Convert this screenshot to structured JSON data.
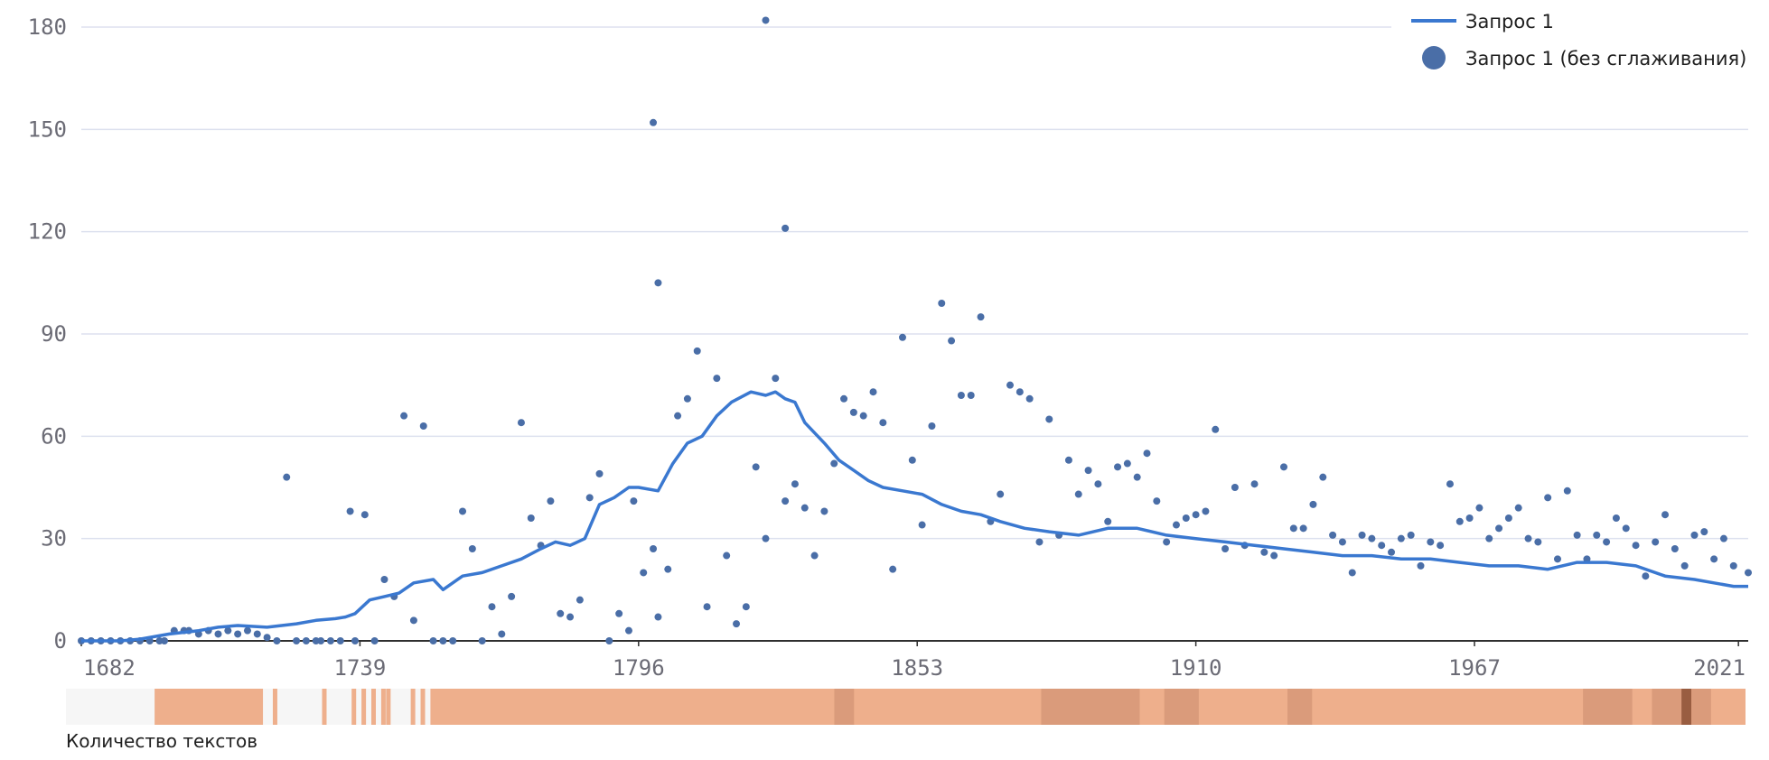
{
  "chart_data": {
    "type": "line",
    "title": "",
    "xlabel": "",
    "ylabel": "",
    "xlim": [
      1682,
      2023
    ],
    "ylim": [
      0,
      180
    ],
    "x_ticks": [
      "1682",
      "1739",
      "1796",
      "1853",
      "1910",
      "1967",
      "2021"
    ],
    "y_ticks": [
      "0",
      "30",
      "60",
      "90",
      "120",
      "150",
      "180"
    ],
    "grid": true,
    "legend_position": "top-right",
    "colors": {
      "smoothed": "#3a78d0",
      "raw": "#4a6ea7",
      "grid": "#dde1ef"
    },
    "series": [
      {
        "name": "Запрос 1",
        "style": "line",
        "x": [
          1682,
          1690,
          1694,
          1700,
          1706,
          1710,
          1714,
          1720,
          1726,
          1730,
          1734,
          1736,
          1738,
          1741,
          1744,
          1747,
          1750,
          1754,
          1756,
          1760,
          1764,
          1768,
          1772,
          1776,
          1779,
          1782,
          1785,
          1788,
          1791,
          1794,
          1796,
          1800,
          1803,
          1806,
          1809,
          1812,
          1815,
          1819,
          1822,
          1824,
          1826,
          1828,
          1830,
          1832,
          1834,
          1837,
          1840,
          1843,
          1846,
          1850,
          1854,
          1858,
          1862,
          1866,
          1870,
          1875,
          1880,
          1886,
          1892,
          1898,
          1904,
          1910,
          1916,
          1922,
          1928,
          1934,
          1940,
          1946,
          1952,
          1958,
          1964,
          1970,
          1976,
          1982,
          1988,
          1994,
          2000,
          2006,
          2012,
          2016,
          2020,
          2023
        ],
        "values": [
          0,
          0,
          0.5,
          2,
          3,
          4,
          4.5,
          4,
          5,
          6,
          6.5,
          7,
          8,
          12,
          13,
          14,
          17,
          18,
          15,
          19,
          20,
          22,
          24,
          27,
          29,
          28,
          30,
          40,
          42,
          45,
          45,
          44,
          52,
          58,
          60,
          66,
          70,
          73,
          72,
          73,
          71,
          70,
          64,
          61,
          58,
          53,
          50,
          47,
          45,
          44,
          43,
          40,
          38,
          37,
          35,
          33,
          32,
          31,
          33,
          33,
          31,
          30,
          29,
          28,
          27,
          26,
          25,
          25,
          24,
          24,
          23,
          22,
          22,
          21,
          23,
          23,
          22,
          19,
          18,
          17,
          16,
          16
        ]
      },
      {
        "name": "Запрос 1 (без сглаживания)",
        "style": "scatter",
        "x": [
          1682,
          1684,
          1686,
          1688,
          1690,
          1692,
          1694,
          1696,
          1698,
          1699,
          1701,
          1703,
          1704,
          1706,
          1708,
          1710,
          1712,
          1714,
          1716,
          1718,
          1720,
          1722,
          1724,
          1726,
          1728,
          1730,
          1731,
          1733,
          1735,
          1737,
          1738,
          1740,
          1742,
          1744,
          1746,
          1748,
          1750,
          1752,
          1754,
          1756,
          1758,
          1760,
          1762,
          1764,
          1766,
          1768,
          1770,
          1772,
          1774,
          1776,
          1778,
          1780,
          1782,
          1784,
          1786,
          1788,
          1790,
          1792,
          1794,
          1795,
          1797,
          1799,
          1800,
          1802,
          1804,
          1806,
          1808,
          1810,
          1812,
          1814,
          1816,
          1818,
          1820,
          1822,
          1824,
          1826,
          1828,
          1830,
          1832,
          1834,
          1836,
          1838,
          1840,
          1842,
          1844,
          1846,
          1848,
          1850,
          1852,
          1854,
          1856,
          1858,
          1860,
          1862,
          1864,
          1866,
          1868,
          1870,
          1872,
          1874,
          1876,
          1878,
          1880,
          1882,
          1884,
          1886,
          1888,
          1890,
          1892,
          1894,
          1896,
          1898,
          1900,
          1902,
          1904,
          1906,
          1908,
          1910,
          1912,
          1914,
          1916,
          1918,
          1920,
          1922,
          1924,
          1926,
          1928,
          1930,
          1932,
          1934,
          1936,
          1938,
          1940,
          1942,
          1944,
          1946,
          1948,
          1950,
          1952,
          1954,
          1956,
          1958,
          1960,
          1962,
          1964,
          1966,
          1968,
          1970,
          1972,
          1974,
          1976,
          1978,
          1980,
          1982,
          1984,
          1986,
          1988,
          1990,
          1992,
          1994,
          1996,
          1998,
          2000,
          2002,
          2004,
          2006,
          2008,
          2010,
          2012,
          2014,
          2016,
          2018,
          2020,
          2023
        ],
        "values": [
          0,
          0,
          0,
          0,
          0,
          0,
          0,
          0,
          0,
          0,
          3,
          3,
          3,
          2,
          3,
          2,
          3,
          2,
          3,
          2,
          1,
          0,
          48,
          0,
          0,
          0,
          0,
          0,
          0,
          38,
          0,
          37,
          0,
          18,
          13,
          66,
          6,
          63,
          0,
          0,
          0,
          38,
          27,
          0,
          10,
          2,
          13,
          64,
          36,
          28,
          41,
          8,
          7,
          12,
          42,
          49,
          0,
          8,
          3,
          41,
          20,
          27,
          7,
          21,
          66,
          71,
          85,
          10,
          77,
          25,
          5,
          10,
          51,
          30,
          77,
          41,
          46,
          39,
          25,
          38,
          52,
          71,
          67,
          66,
          73,
          64,
          21,
          89,
          53,
          34,
          63,
          99,
          88,
          72,
          72,
          95,
          35,
          43,
          75,
          73,
          71,
          29,
          65,
          31,
          53,
          43,
          50,
          46,
          35,
          51,
          52,
          48,
          55,
          41,
          29,
          34,
          36,
          37,
          38,
          62,
          27,
          45,
          28,
          46,
          26,
          25,
          51,
          33,
          33,
          40,
          48,
          31,
          29,
          20,
          31,
          30,
          28,
          26,
          30,
          31,
          22,
          29,
          28,
          46,
          35,
          36,
          39,
          30,
          33,
          36,
          39,
          30,
          29,
          42,
          24,
          44,
          31,
          24,
          31,
          29,
          36,
          33,
          28,
          19,
          29,
          37,
          27,
          22,
          31,
          32,
          24,
          30,
          22,
          20
        ]
      }
    ],
    "density_strip": {
      "label": "Количество текстов",
      "colors": {
        "empty": "#f6f6f6",
        "low": "#eeaf8c",
        "mid": "#d69878",
        "high": "#8a4f34"
      }
    }
  }
}
